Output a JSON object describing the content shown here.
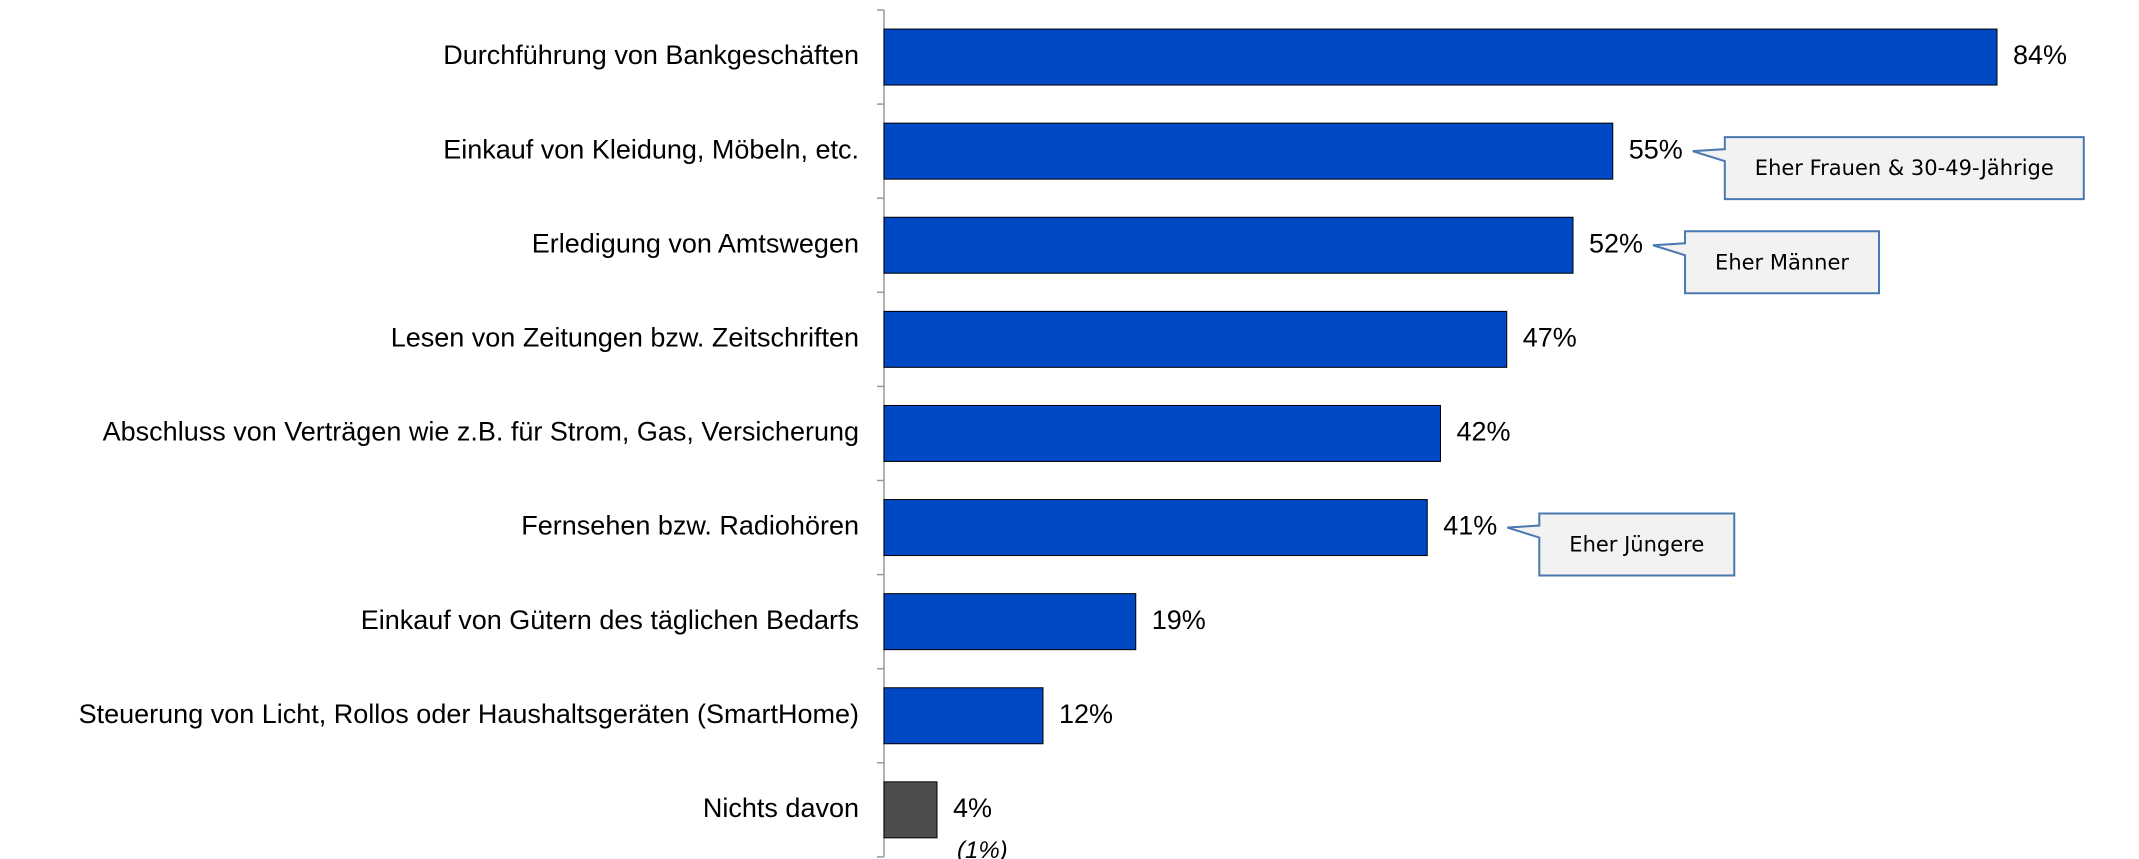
{
  "chart_data": {
    "type": "barh",
    "categories": [
      "Durchführung von Bankgeschäften",
      "Einkauf von Kleidung, Möbeln, etc.",
      "Erledigung von Amtswegen",
      "Lesen von Zeitungen bzw. Zeitschriften",
      "Abschluss von Verträgen wie z.B. für Strom, Gas, Versicherung",
      "Fernsehen bzw. Radiohören",
      "Einkauf von Gütern des täglichen Bedarfs",
      "Steuerung von Licht, Rollos oder Haushaltsgeräten (SmartHome)",
      "Nichts davon"
    ],
    "values": [
      84,
      55,
      52,
      47,
      42,
      41,
      19,
      12,
      4
    ],
    "value_labels": [
      "84%",
      "55%",
      "52%",
      "47%",
      "42%",
      "41%",
      "19%",
      "12%",
      "4%"
    ],
    "colors": [
      "#0048c4",
      "#0048c4",
      "#0048c4",
      "#0048c4",
      "#0048c4",
      "#0048c4",
      "#0048c4",
      "#0048c4",
      "#4d4d4d"
    ],
    "callouts": [
      null,
      "Eher Frauen & 30-49-Jährige",
      "Eher Männer",
      null,
      null,
      "Eher Jüngere",
      null,
      null,
      null
    ],
    "sublabels": [
      null,
      null,
      null,
      null,
      null,
      null,
      null,
      null,
      "(1%)"
    ]
  }
}
